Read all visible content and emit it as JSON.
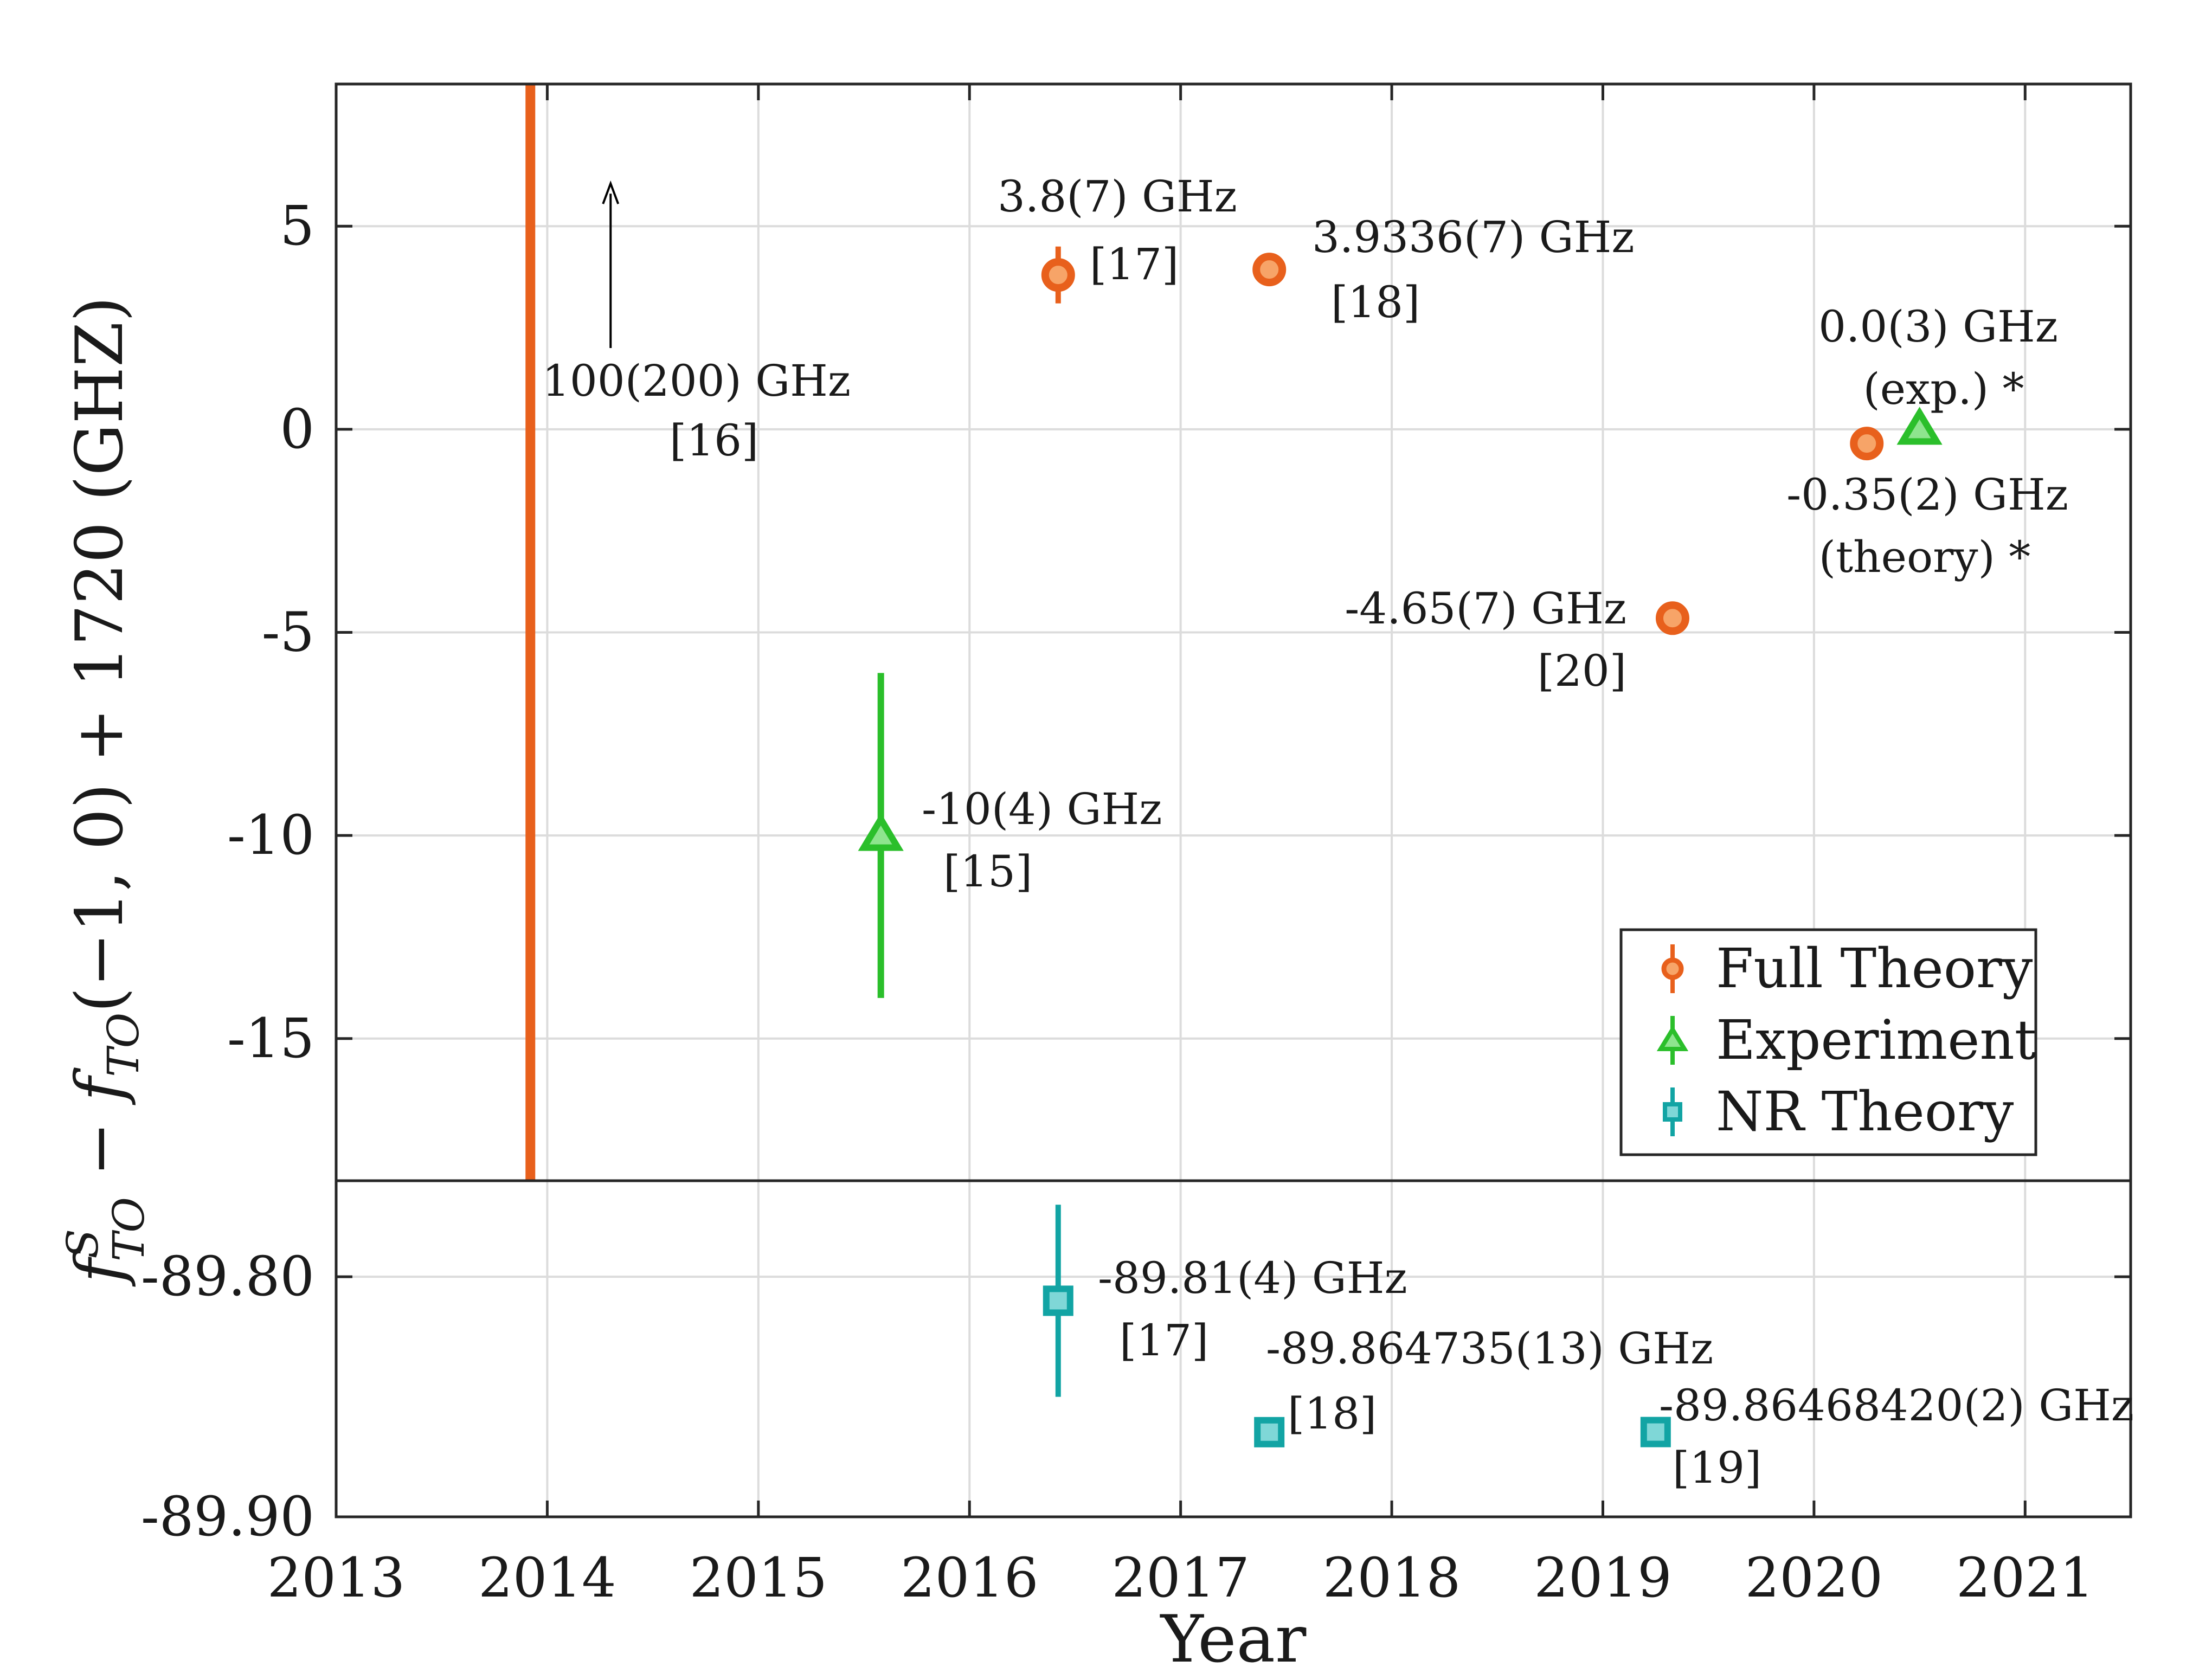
{
  "chart_data": [
    {
      "panel": "top",
      "type": "scatter",
      "xlabel": "Year",
      "ylabel_parts": {
        "f": "f",
        "sup": "S",
        "sub": "TO",
        "rest": " − f",
        "sub2": "TO",
        "tail": "(−1, 0) + 1720 (GHZ)"
      },
      "xlim": [
        2013,
        2021.5
      ],
      "ylim": [
        -18.5,
        8.5
      ],
      "xticks": [
        "2013",
        "2014",
        "2015",
        "2016",
        "2017",
        "2018",
        "2019",
        "2020",
        "2021"
      ],
      "yticks": [
        {
          "value": 5,
          "label": "5"
        },
        {
          "value": 0,
          "label": "0"
        },
        {
          "value": -5,
          "label": "-5"
        },
        {
          "value": -10,
          "label": "-10"
        },
        {
          "value": -15,
          "label": "-15"
        }
      ],
      "grid": true,
      "legend_position": "bottom-right",
      "legend": [
        {
          "label": "Full Theory",
          "color": "#e8601c",
          "marker": "circle"
        },
        {
          "label": "Experiment",
          "color": "#2bbf2b",
          "marker": "triangle"
        },
        {
          "label": "NR Theory",
          "color": "#12a4a4",
          "marker": "square"
        }
      ],
      "series": [
        {
          "name": "Full Theory",
          "color": "#e8601c",
          "points": [
            {
              "x": 2016.42,
              "y": 3.8,
              "err": 0.7,
              "label": "3.8(7) GHz",
              "ref": "[17]"
            },
            {
              "x": 2017.42,
              "y": 3.9336,
              "err": 0.0007,
              "label": "3.9336(7) GHz",
              "ref": "[18]"
            },
            {
              "x": 2019.33,
              "y": -4.65,
              "err": 0.07,
              "label": "-4.65(7) GHz",
              "ref": "[20]"
            },
            {
              "x": 2020.25,
              "y": -0.35,
              "err": 0.02,
              "label": "-0.35(2) GHz",
              "ref": "(theory) *"
            }
          ]
        },
        {
          "name": "Experiment",
          "color": "#2bbf2b",
          "points": [
            {
              "x": 2015.58,
              "y": -10,
              "err": 4,
              "label": "-10(4) GHz",
              "ref": "[15]"
            },
            {
              "x": 2020.5,
              "y": 0.0,
              "err": 0.3,
              "label": "0.0(3) GHz",
              "ref": "(exp.)  *"
            }
          ]
        }
      ],
      "special": {
        "x": 2013.92,
        "y": 100,
        "err": 200,
        "label": "100(200) GHz",
        "ref": "[16]",
        "color": "#e8601c"
      }
    },
    {
      "panel": "bottom",
      "type": "scatter",
      "xlim": [
        2013,
        2021.5
      ],
      "ylim": [
        -89.9,
        -89.76
      ],
      "yticks": [
        {
          "value": -89.8,
          "label": "-89.80"
        },
        {
          "value": -89.9,
          "label": "-89.90"
        }
      ],
      "grid": true,
      "series": [
        {
          "name": "NR Theory",
          "color": "#12a4a4",
          "points": [
            {
              "x": 2016.42,
              "y": -89.81,
              "err": 0.04,
              "label": "-89.81(4) GHz",
              "ref": "[17]"
            },
            {
              "x": 2017.42,
              "y": -89.864735,
              "err": 1.3e-05,
              "label": "-89.864735(13) GHz",
              "ref": "[18]"
            },
            {
              "x": 2019.25,
              "y": -89.8646842,
              "err": 2e-08,
              "label": "-89.86468420(2) GHz",
              "ref": "[19]"
            }
          ]
        }
      ]
    }
  ]
}
